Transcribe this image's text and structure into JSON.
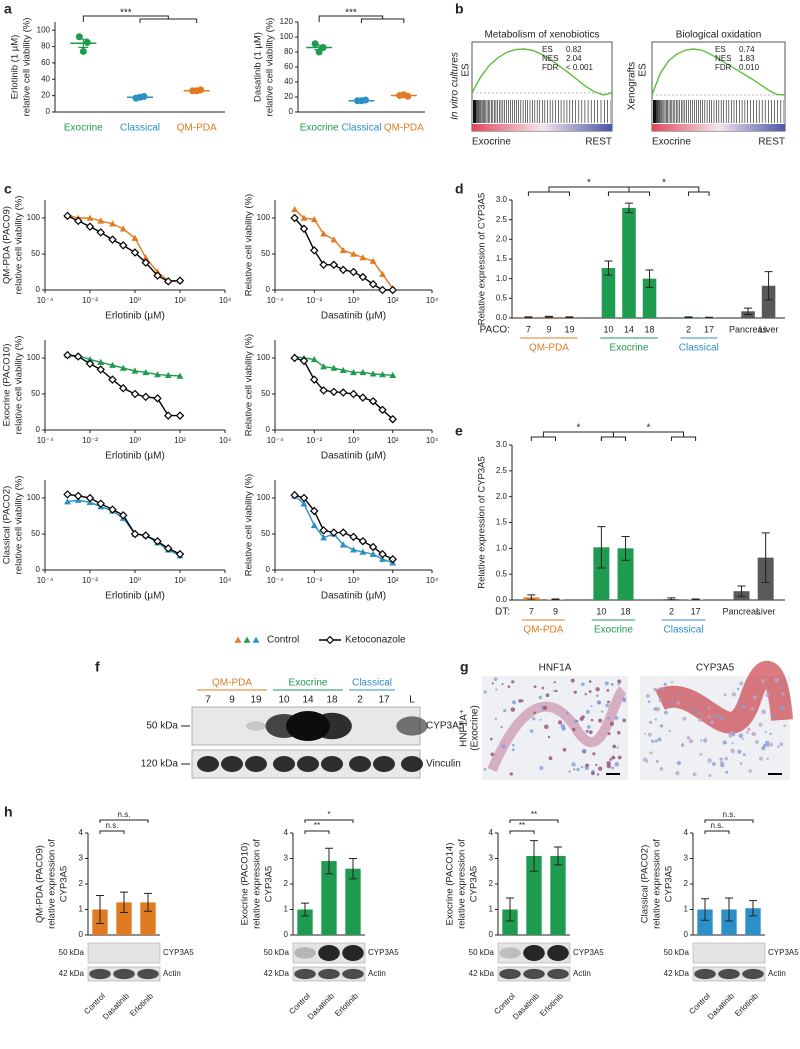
{
  "panel_labels": [
    "a",
    "b",
    "c",
    "d",
    "e",
    "f",
    "g",
    "h"
  ],
  "chart_data": [
    {
      "type": "dot",
      "ylabel": [
        "Erlotinib (1 µM)",
        "relative cell viability (%)"
      ],
      "ylim": [
        0,
        110
      ],
      "yticks": [
        0,
        20,
        40,
        60,
        80,
        100
      ],
      "significance": "***",
      "groups": [
        {
          "name": "Exocrine",
          "color": "#1e9b4f",
          "values": [
            92,
            85,
            74
          ],
          "mean": 84,
          "sem": 5
        },
        {
          "name": "Classical",
          "color": "#2c8fc6",
          "values": [
            17,
            19,
            18
          ],
          "mean": 18,
          "sem": 0.6
        },
        {
          "name": "QM-PDA",
          "color": "#e07b22",
          "values": [
            26,
            27,
            26
          ],
          "mean": 26,
          "sem": 0.3
        }
      ]
    },
    {
      "type": "dot",
      "ylabel": [
        "Dasatinib (1 µM)",
        "relative cell viability (%)"
      ],
      "ylim": [
        0,
        120
      ],
      "yticks": [
        0,
        20,
        40,
        60,
        80,
        100,
        120
      ],
      "significance": "***",
      "groups": [
        {
          "name": "Exocrine",
          "color": "#1e9b4f",
          "values": [
            91,
            86,
            80
          ],
          "mean": 86,
          "sem": 3
        },
        {
          "name": "Classical",
          "color": "#2c8fc6",
          "values": [
            15,
            16,
            15
          ],
          "mean": 15,
          "sem": 0.5
        },
        {
          "name": "QM-PDA",
          "color": "#e07b22",
          "values": [
            22,
            21,
            23
          ],
          "mean": 22,
          "sem": 0.6
        }
      ]
    },
    {
      "type": "line",
      "log_x": true,
      "ylabel": [
        "QM-PDA (PACO9)",
        "relative cell viability (%)"
      ],
      "xlabel": "Erlotinib (µM)",
      "x": [
        0.001,
        0.003,
        0.01,
        0.03,
        0.1,
        0.3,
        1,
        3,
        10,
        30,
        100
      ],
      "xlim": [
        0.0001,
        10000
      ],
      "xticks": [
        {
          "value": 0.0001,
          "label": "10⁻⁴"
        },
        {
          "value": 0.01,
          "label": "10⁻²"
        },
        {
          "value": 1,
          "label": "10⁰"
        },
        {
          "value": 100,
          "label": "10²"
        },
        {
          "value": 10000,
          "label": "10⁴"
        }
      ],
      "ylim": [
        0,
        125
      ],
      "yticks": [
        0,
        50,
        100
      ],
      "series": [
        {
          "marker": "triangle",
          "color": "#e07b22",
          "values": [
            104,
            100,
            100,
            96,
            92,
            85,
            72,
            45,
            25,
            13,
            13
          ]
        },
        {
          "marker": "diamond",
          "color": "#000000",
          "values": [
            103,
            96,
            88,
            80,
            70,
            62,
            52,
            38,
            20,
            12,
            13
          ]
        }
      ]
    },
    {
      "type": "line",
      "log_x": true,
      "ylabel": [
        "Relative cell viability (%)"
      ],
      "xlabel": "Dasatinib (µM)",
      "x": [
        0.001,
        0.003,
        0.01,
        0.03,
        0.1,
        0.3,
        1,
        3,
        10,
        30,
        100
      ],
      "xlim": [
        0.0001,
        10000
      ],
      "xticks": [
        {
          "value": 0.0001,
          "label": "10⁻⁴"
        },
        {
          "value": 0.01,
          "label": "10⁻²"
        },
        {
          "value": 1,
          "label": "10⁰"
        },
        {
          "value": 100,
          "label": "10²"
        },
        {
          "value": 10000,
          "label": "10⁴"
        }
      ],
      "ylim": [
        0,
        125
      ],
      "yticks": [
        0,
        50,
        100
      ],
      "series": [
        {
          "marker": "triangle",
          "color": "#e07b22",
          "values": [
            112,
            100,
            98,
            78,
            70,
            55,
            50,
            45,
            40,
            22,
            2
          ]
        },
        {
          "marker": "diamond",
          "color": "#000000",
          "values": [
            100,
            85,
            55,
            35,
            35,
            28,
            25,
            18,
            8,
            0,
            0
          ]
        }
      ]
    },
    {
      "type": "line",
      "log_x": true,
      "ylabel": [
        "Exocrine (PACO10)",
        "relative cell viability (%)"
      ],
      "xlabel": "Erlotinib (µM)",
      "x": [
        0.001,
        0.003,
        0.01,
        0.03,
        0.1,
        0.3,
        1,
        3,
        10,
        30,
        100
      ],
      "xlim": [
        0.0001,
        10000
      ],
      "xticks": [
        {
          "value": 0.0001,
          "label": "10⁻⁴"
        },
        {
          "value": 0.01,
          "label": "10⁻²"
        },
        {
          "value": 1,
          "label": "10⁰"
        },
        {
          "value": 100,
          "label": "10²"
        },
        {
          "value": 10000,
          "label": "10⁴"
        }
      ],
      "ylim": [
        0,
        125
      ],
      "yticks": [
        0,
        50,
        100
      ],
      "series": [
        {
          "marker": "triangle",
          "color": "#1e9b4f",
          "values": [
            104,
            103,
            98,
            94,
            90,
            86,
            82,
            80,
            77,
            76,
            75
          ]
        },
        {
          "marker": "diamond",
          "color": "#000000",
          "values": [
            104,
            102,
            92,
            84,
            70,
            58,
            50,
            46,
            44,
            20,
            20
          ]
        }
      ]
    },
    {
      "type": "line",
      "log_x": true,
      "ylabel": [
        "Relative cell viability (%)"
      ],
      "xlabel": "Dasatinib (µM)",
      "x": [
        0.001,
        0.003,
        0.01,
        0.03,
        0.1,
        0.3,
        1,
        3,
        10,
        30,
        100
      ],
      "xlim": [
        0.0001,
        10000
      ],
      "xticks": [
        {
          "value": 0.0001,
          "label": "10⁻⁴"
        },
        {
          "value": 0.01,
          "label": "10⁻²"
        },
        {
          "value": 1,
          "label": "10⁰"
        },
        {
          "value": 100,
          "label": "10²"
        },
        {
          "value": 10000,
          "label": "10⁴"
        }
      ],
      "ylim": [
        0,
        125
      ],
      "yticks": [
        0,
        50,
        100
      ],
      "series": [
        {
          "marker": "triangle",
          "color": "#1e9b4f",
          "values": [
            102,
            100,
            98,
            88,
            86,
            83,
            80,
            80,
            78,
            77,
            76
          ]
        },
        {
          "marker": "diamond",
          "color": "#000000",
          "values": [
            100,
            96,
            70,
            55,
            53,
            52,
            50,
            45,
            40,
            28,
            15
          ]
        }
      ]
    },
    {
      "type": "line",
      "log_x": true,
      "ylabel": [
        "Classical (PACO2)",
        "relative cell viability (%)"
      ],
      "xlabel": "Erlotinib (µM)",
      "x": [
        0.001,
        0.003,
        0.01,
        0.03,
        0.1,
        0.3,
        1,
        3,
        10,
        30,
        100
      ],
      "xlim": [
        0.0001,
        10000
      ],
      "xticks": [
        {
          "value": 0.0001,
          "label": "10⁻⁴"
        },
        {
          "value": 0.01,
          "label": "10⁻²"
        },
        {
          "value": 1,
          "label": "10⁰"
        },
        {
          "value": 100,
          "label": "10²"
        },
        {
          "value": 10000,
          "label": "10⁴"
        }
      ],
      "ylim": [
        0,
        125
      ],
      "yticks": [
        0,
        50,
        100
      ],
      "series": [
        {
          "marker": "triangle",
          "color": "#2c8fc6",
          "values": [
            95,
            97,
            94,
            88,
            82,
            72,
            50,
            48,
            38,
            28,
            20
          ]
        },
        {
          "marker": "diamond",
          "color": "#000000",
          "values": [
            105,
            103,
            100,
            92,
            84,
            76,
            50,
            48,
            40,
            30,
            22
          ]
        }
      ]
    },
    {
      "type": "line",
      "log_x": true,
      "ylabel": [
        "Relative cell viability (%)"
      ],
      "xlabel": "Dasatinib (µM)",
      "x": [
        0.001,
        0.003,
        0.01,
        0.03,
        0.1,
        0.3,
        1,
        3,
        10,
        30,
        100
      ],
      "xlim": [
        0.0001,
        10000
      ],
      "xticks": [
        {
          "value": 0.0001,
          "label": "10⁻⁴"
        },
        {
          "value": 0.01,
          "label": "10⁻²"
        },
        {
          "value": 1,
          "label": "10⁰"
        },
        {
          "value": 100,
          "label": "10²"
        },
        {
          "value": 10000,
          "label": "10⁴"
        }
      ],
      "ylim": [
        0,
        125
      ],
      "yticks": [
        0,
        50,
        100
      ],
      "series": [
        {
          "marker": "triangle",
          "color": "#2c8fc6",
          "values": [
            103,
            92,
            62,
            45,
            50,
            35,
            28,
            25,
            22,
            15,
            10
          ]
        },
        {
          "marker": "diamond",
          "color": "#000000",
          "values": [
            104,
            100,
            82,
            55,
            52,
            52,
            46,
            40,
            32,
            22,
            15
          ]
        }
      ]
    },
    {
      "type": "grouped_bar",
      "ylabel": "Relative expression of CYP3A5",
      "axis_prefix": "PACO:",
      "ylim": [
        0,
        3
      ],
      "yticks": [
        {
          "value": 0,
          "label": "0.0"
        },
        0.5,
        {
          "value": 1,
          "label": "1.0"
        },
        1.5,
        {
          "value": 2,
          "label": "2.0"
        },
        2.5,
        {
          "value": 3,
          "label": "3.0"
        }
      ],
      "significance": [
        "*",
        "*"
      ],
      "groups": [
        {
          "name": "QM-PDA",
          "color": "#e07b22",
          "categories": [
            "7",
            "9",
            "19"
          ],
          "values": [
            0.02,
            0.03,
            0.02
          ],
          "errors": [
            0.01,
            0.01,
            0.01
          ]
        },
        {
          "name": "Exocrine",
          "color": "#1e9b4f",
          "categories": [
            "10",
            "14",
            "18"
          ],
          "values": [
            1.27,
            2.8,
            1.0
          ],
          "errors": [
            0.18,
            0.12,
            0.22
          ]
        },
        {
          "name": "Classical",
          "color": "#2c8fc6",
          "categories": [
            "2",
            "17"
          ],
          "values": [
            0.02,
            0.01
          ],
          "errors": [
            0.01,
            0.01
          ]
        },
        {
          "color": "#595959",
          "categories": [
            "Pancreas",
            "Liver"
          ],
          "values": [
            0.17,
            0.82
          ],
          "errors": [
            0.08,
            0.36
          ]
        }
      ]
    },
    {
      "type": "grouped_bar",
      "ylabel": "Relative expression of CYP3A5",
      "axis_prefix": "DT:",
      "ylim": [
        0,
        3
      ],
      "yticks": [
        {
          "value": 0,
          "label": "0.0"
        },
        0.5,
        {
          "value": 1,
          "label": "1.0"
        },
        1.5,
        {
          "value": 2,
          "label": "2.0"
        },
        2.5,
        {
          "value": 3,
          "label": "3.0"
        }
      ],
      "significance": [
        "*",
        "*"
      ],
      "groups": [
        {
          "name": "QM-PDA",
          "color": "#e07b22",
          "categories": [
            "7",
            "9"
          ],
          "values": [
            0.05,
            0.01
          ],
          "errors": [
            0.05,
            0.01
          ]
        },
        {
          "name": "Exocrine",
          "color": "#1e9b4f",
          "categories": [
            "10",
            "18"
          ],
          "values": [
            1.02,
            1.0
          ],
          "errors": [
            0.4,
            0.23
          ]
        },
        {
          "name": "Classical",
          "color": "#2c8fc6",
          "categories": [
            "2",
            "17"
          ],
          "values": [
            0.02,
            0.01
          ],
          "errors": [
            0.02,
            0.01
          ]
        },
        {
          "color": "#595959",
          "categories": [
            "Pancreas",
            "Liver"
          ],
          "values": [
            0.17,
            0.82
          ],
          "errors": [
            0.1,
            0.48
          ]
        }
      ]
    },
    {
      "type": "bar",
      "ylabel": [
        "QM-PDA (PACO9)",
        "relative expression of",
        "CYP3A5"
      ],
      "color": "#e07b22",
      "categories": [
        "Control",
        "Dasatinib",
        "Erlotinib"
      ],
      "values": [
        1.0,
        1.28,
        1.28
      ],
      "errors": [
        0.55,
        0.4,
        0.35
      ],
      "ylim": [
        0,
        4
      ],
      "yticks": [
        0,
        1,
        2,
        3,
        4
      ],
      "significance": [
        "n.s.",
        "n.s."
      ],
      "blot": {
        "markers": [
          "50 kDa",
          "42 kDa"
        ],
        "proteins": [
          "CYP3A5",
          "Actin"
        ]
      }
    },
    {
      "type": "bar",
      "ylabel": [
        "Exocrine (PACO10)",
        "relative expression of",
        "CYP3A5"
      ],
      "color": "#1e9b4f",
      "categories": [
        "Control",
        "Dasatinib",
        "Erlotinib"
      ],
      "values": [
        1.0,
        2.9,
        2.6
      ],
      "errors": [
        0.25,
        0.5,
        0.4
      ],
      "ylim": [
        0,
        4
      ],
      "yticks": [
        0,
        1,
        2,
        3,
        4
      ],
      "significance": [
        "**",
        "*"
      ],
      "blot": {
        "markers": [
          "50 kDa",
          "42 kDa"
        ],
        "proteins": [
          "CYP3A5",
          "Actin"
        ]
      }
    },
    {
      "type": "bar",
      "ylabel": [
        "Exocrine (PACO14)",
        "relative expression of",
        "CYP3A5"
      ],
      "color": "#1e9b4f",
      "categories": [
        "Control",
        "Dasatinib",
        "Erlotinib"
      ],
      "values": [
        1.0,
        3.1,
        3.1
      ],
      "errors": [
        0.45,
        0.6,
        0.35
      ],
      "ylim": [
        0,
        4
      ],
      "yticks": [
        0,
        1,
        2,
        3,
        4
      ],
      "significance": [
        "**",
        "**"
      ],
      "blot": {
        "markers": [
          "50 kDa",
          "42 kDa"
        ],
        "proteins": [
          "CYP3A5",
          "Actin"
        ]
      }
    },
    {
      "type": "bar",
      "ylabel": [
        "Classical (PACO2)",
        "relative expression of",
        "CYP3A5"
      ],
      "color": "#2c8fc6",
      "categories": [
        "Control",
        "Dasatinib",
        "Erlotinib"
      ],
      "values": [
        1.0,
        1.0,
        1.05
      ],
      "errors": [
        0.42,
        0.45,
        0.3
      ],
      "ylim": [
        0,
        4
      ],
      "yticks": [
        0,
        1,
        2,
        3,
        4
      ],
      "significance": [
        "n.s.",
        "n.s."
      ],
      "blot": {
        "markers": [
          "50 kDa",
          "42 kDa"
        ],
        "proteins": [
          "CYP3A5",
          "Actin"
        ]
      }
    }
  ],
  "gsea": [
    {
      "title": "Metabolism of xenobiotics",
      "side_label": "In vitro cultures",
      "axis_label": "ES",
      "stats": [
        {
          "name": "ES",
          "value": "0.82"
        },
        {
          "name": "NES",
          "value": "2.04"
        },
        {
          "name": "FDR",
          "value": "< 0.001"
        }
      ],
      "left": "Exocrine",
      "right": "REST",
      "curve": [
        0,
        0.3,
        0.52,
        0.66,
        0.76,
        0.81,
        0.82,
        0.79,
        0.72,
        0.62,
        0.5,
        0.38,
        0.25,
        0.12,
        0.02,
        -0.04,
        0
      ]
    },
    {
      "title": "Biological oxidation",
      "side_label": "Xenografts",
      "axis_label": "ES",
      "stats": [
        {
          "name": "ES",
          "value": "0.74"
        },
        {
          "name": "NES",
          "value": "1.83"
        },
        {
          "name": "FDR",
          "value": "0.010"
        }
      ],
      "left": "Exocrine",
      "right": "REST",
      "curve": [
        0,
        0.35,
        0.55,
        0.66,
        0.72,
        0.74,
        0.72,
        0.66,
        0.58,
        0.5,
        0.42,
        0.34,
        0.26,
        0.17,
        0.08,
        0.01,
        0
      ]
    }
  ],
  "legend_c": [
    {
      "name": "Control",
      "marker": "triangle",
      "colors": [
        "#e07b22",
        "#1e9b4f",
        "#2c8fc6"
      ]
    },
    {
      "name": "Ketoconazole",
      "marker": "diamond",
      "colors": [
        "#000000"
      ]
    }
  ],
  "western_blot": {
    "groups": [
      {
        "name": "QM-PDA",
        "color": "#e07b22",
        "lanes": [
          "7",
          "9",
          "19"
        ]
      },
      {
        "name": "Exocrine",
        "color": "#1e9b4f",
        "lanes": [
          "10",
          "14",
          "18"
        ]
      },
      {
        "name": "Classical",
        "color": "#2c8fc6",
        "lanes": [
          "2",
          "17"
        ]
      },
      {
        "lanes": [
          "L"
        ]
      }
    ],
    "rows": [
      {
        "marker": "50 kDa",
        "protein": "CYP3A5"
      },
      {
        "marker": "120 kDa",
        "protein": "Vinculin"
      }
    ]
  },
  "ihc": {
    "side_label": [
      "HNF1A⁺",
      "(Exocrine)"
    ],
    "images": [
      "HNF1A",
      "CYP3A5"
    ]
  }
}
